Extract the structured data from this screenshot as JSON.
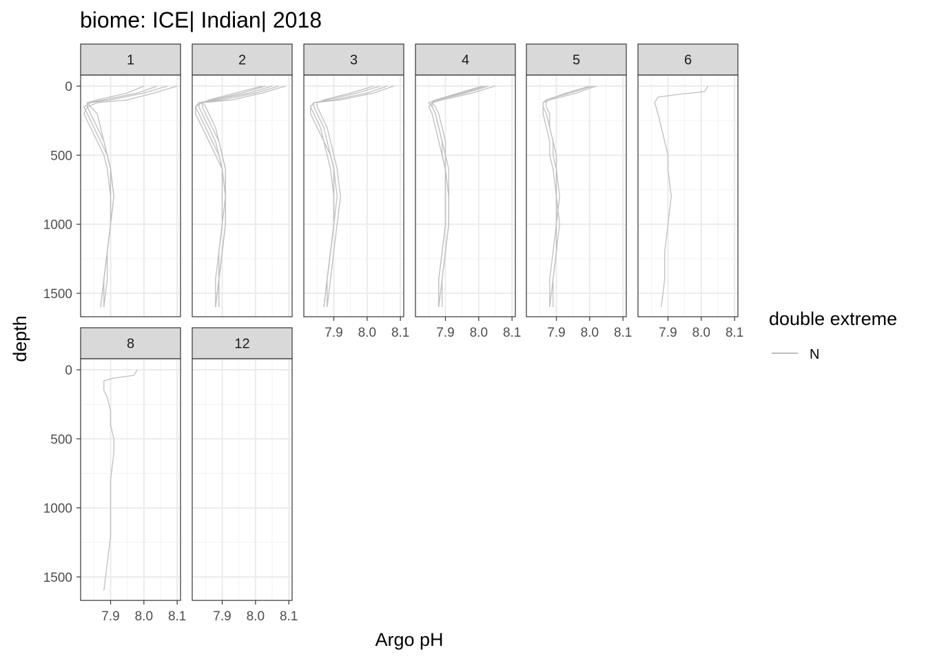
{
  "chart_data": {
    "type": "line",
    "title": "biome: ICE| Indian| 2018",
    "xlabel": "Argo pH",
    "ylabel": "depth",
    "x_range": [
      7.81,
      8.11
    ],
    "y_range": [
      1670,
      -80
    ],
    "y_reversed": true,
    "x_ticks": [
      "7.9",
      "8.0",
      "8.1"
    ],
    "y_ticks": [
      "0",
      "500",
      "1000",
      "1500"
    ],
    "grid": true,
    "line_color": "#bebebe",
    "legend": {
      "title": "double extreme",
      "entries": [
        "N"
      ],
      "placement": "right"
    },
    "panels": [
      {
        "label": "1",
        "profiles": [
          {
            "x": [
              8.1,
              8.03,
              7.95,
              7.86,
              7.83,
              7.82,
              7.84,
              7.86,
              7.88,
              7.89,
              7.9,
              7.9,
              7.89,
              7.88,
              7.87
            ],
            "depth": [
              0,
              50,
              100,
              120,
              150,
              200,
              300,
              400,
              500,
              600,
              800,
              1000,
              1200,
              1400,
              1600
            ]
          },
          {
            "x": [
              8.07,
              8.0,
              7.9,
              7.84,
              7.82,
              7.83,
              7.85,
              7.87,
              7.89,
              7.9,
              7.91,
              7.9,
              7.89,
              7.88,
              7.88
            ],
            "depth": [
              0,
              50,
              100,
              120,
              150,
              200,
              300,
              400,
              500,
              600,
              800,
              1000,
              1200,
              1400,
              1600
            ]
          },
          {
            "x": [
              8.04,
              7.98,
              7.88,
              7.83,
              7.83,
              7.84,
              7.86,
              7.88,
              7.89,
              7.9,
              7.9,
              7.9,
              7.89,
              7.88,
              7.87
            ],
            "depth": [
              0,
              50,
              100,
              120,
              150,
              200,
              300,
              400,
              500,
              600,
              800,
              1000,
              1200,
              1400,
              1600
            ]
          },
          {
            "x": [
              8.0,
              7.95,
              7.86,
              7.83,
              7.84,
              7.86,
              7.87,
              7.88,
              7.89,
              7.9,
              7.91,
              7.9,
              7.89,
              7.89,
              7.88
            ],
            "depth": [
              0,
              50,
              100,
              120,
              150,
              200,
              300,
              400,
              500,
              600,
              800,
              1000,
              1200,
              1400,
              1600
            ]
          }
        ]
      },
      {
        "label": "2",
        "profiles": [
          {
            "x": [
              8.09,
              8.02,
              7.93,
              7.84,
              7.82,
              7.82,
              7.84,
              7.86,
              7.88,
              7.9,
              7.91,
              7.91,
              7.9,
              7.89,
              7.88
            ],
            "depth": [
              0,
              50,
              100,
              120,
              150,
              200,
              300,
              400,
              500,
              600,
              800,
              1000,
              1200,
              1400,
              1600
            ]
          },
          {
            "x": [
              8.07,
              8.0,
              7.9,
              7.83,
              7.82,
              7.83,
              7.85,
              7.87,
              7.89,
              7.9,
              7.91,
              7.91,
              7.9,
              7.89,
              7.89
            ],
            "depth": [
              0,
              50,
              100,
              120,
              150,
              200,
              300,
              400,
              500,
              600,
              800,
              1000,
              1200,
              1400,
              1600
            ]
          },
          {
            "x": [
              8.05,
              7.98,
              7.88,
              7.83,
              7.83,
              7.84,
              7.86,
              7.88,
              7.89,
              7.9,
              7.9,
              7.9,
              7.89,
              7.88,
              7.88
            ],
            "depth": [
              0,
              50,
              100,
              120,
              150,
              200,
              300,
              400,
              500,
              600,
              800,
              1000,
              1200,
              1400,
              1600
            ]
          },
          {
            "x": [
              8.03,
              7.96,
              7.87,
              7.84,
              7.84,
              7.85,
              7.87,
              7.89,
              7.9,
              7.91,
              7.91,
              7.9,
              7.89,
              7.89,
              7.88
            ],
            "depth": [
              0,
              50,
              100,
              120,
              150,
              200,
              300,
              400,
              500,
              600,
              800,
              1000,
              1200,
              1400,
              1600
            ]
          },
          {
            "x": [
              8.02,
              7.94,
              7.86,
              7.84,
              7.85,
              7.86,
              7.88,
              7.89,
              7.9,
              7.91,
              7.91,
              7.91,
              7.9,
              7.89,
              7.89
            ],
            "depth": [
              0,
              50,
              100,
              120,
              150,
              200,
              300,
              400,
              500,
              600,
              800,
              1000,
              1200,
              1400,
              1600
            ]
          }
        ]
      },
      {
        "label": "3",
        "profiles": [
          {
            "x": [
              8.08,
              8.02,
              7.92,
              7.84,
              7.83,
              7.83,
              7.85,
              7.87,
              7.88,
              7.89,
              7.9,
              7.9,
              7.89,
              7.88,
              7.87
            ],
            "depth": [
              0,
              50,
              100,
              120,
              150,
              200,
              300,
              400,
              500,
              600,
              800,
              1000,
              1200,
              1400,
              1600
            ]
          },
          {
            "x": [
              8.06,
              8.0,
              7.9,
              7.84,
              7.83,
              7.84,
              7.86,
              7.87,
              7.89,
              7.9,
              7.91,
              7.9,
              7.89,
              7.88,
              7.88
            ],
            "depth": [
              0,
              50,
              100,
              120,
              150,
              200,
              300,
              400,
              500,
              600,
              800,
              1000,
              1200,
              1400,
              1600
            ]
          },
          {
            "x": [
              8.04,
              7.97,
              7.88,
              7.84,
              7.84,
              7.85,
              7.87,
              7.88,
              7.89,
              7.9,
              7.9,
              7.9,
              7.89,
              7.88,
              7.87
            ],
            "depth": [
              0,
              50,
              100,
              120,
              150,
              200,
              300,
              400,
              500,
              600,
              800,
              1000,
              1200,
              1400,
              1600
            ]
          },
          {
            "x": [
              8.02,
              7.95,
              7.87,
              7.85,
              7.85,
              7.86,
              7.88,
              7.89,
              7.9,
              7.91,
              7.92,
              7.91,
              7.9,
              7.89,
              7.88
            ],
            "depth": [
              0,
              50,
              100,
              120,
              150,
              200,
              300,
              400,
              500,
              600,
              800,
              1000,
              1200,
              1400,
              1600
            ]
          }
        ]
      },
      {
        "label": "4",
        "profiles": [
          {
            "x": [
              8.05,
              7.98,
              7.89,
              7.86,
              7.85,
              7.86,
              7.87,
              7.88,
              7.89,
              7.9,
              7.9,
              7.9,
              7.89,
              7.88,
              7.88
            ],
            "depth": [
              0,
              50,
              100,
              120,
              150,
              200,
              300,
              400,
              500,
              600,
              800,
              1000,
              1200,
              1400,
              1600
            ]
          },
          {
            "x": [
              8.03,
              7.96,
              7.88,
              7.86,
              7.86,
              7.87,
              7.88,
              7.89,
              7.9,
              7.9,
              7.91,
              7.91,
              7.9,
              7.89,
              7.88
            ],
            "depth": [
              0,
              50,
              100,
              120,
              150,
              200,
              300,
              400,
              500,
              600,
              800,
              1000,
              1200,
              1400,
              1600
            ]
          },
          {
            "x": [
              8.02,
              7.95,
              7.87,
              7.85,
              7.86,
              7.87,
              7.88,
              7.89,
              7.89,
              7.9,
              7.9,
              7.9,
              7.89,
              7.88,
              7.88
            ],
            "depth": [
              0,
              50,
              100,
              120,
              150,
              200,
              300,
              400,
              500,
              600,
              800,
              1000,
              1200,
              1400,
              1600
            ]
          },
          {
            "x": [
              8.01,
              7.94,
              7.87,
              7.86,
              7.87,
              7.88,
              7.89,
              7.9,
              7.9,
              7.91,
              7.91,
              7.91,
              7.9,
              7.89,
              7.89
            ],
            "depth": [
              0,
              50,
              100,
              120,
              150,
              200,
              300,
              400,
              500,
              600,
              800,
              1000,
              1200,
              1400,
              1600
            ]
          }
        ]
      },
      {
        "label": "5",
        "profiles": [
          {
            "x": [
              8.02,
              7.96,
              7.88,
              7.86,
              7.86,
              7.86,
              7.87,
              7.88,
              7.88,
              7.89,
              7.9,
              7.9,
              7.89,
              7.88,
              7.88
            ],
            "depth": [
              0,
              50,
              100,
              120,
              150,
              200,
              300,
              400,
              500,
              600,
              800,
              1000,
              1200,
              1400,
              1600
            ]
          },
          {
            "x": [
              8.01,
              7.94,
              7.87,
              7.86,
              7.86,
              7.87,
              7.88,
              7.89,
              7.89,
              7.9,
              7.9,
              7.91,
              7.9,
              7.89,
              7.89
            ],
            "depth": [
              0,
              50,
              100,
              120,
              150,
              200,
              300,
              400,
              500,
              600,
              800,
              1000,
              1200,
              1400,
              1600
            ]
          },
          {
            "x": [
              8.0,
              7.93,
              7.87,
              7.87,
              7.87,
              7.88,
              7.88,
              7.89,
              7.9,
              7.9,
              7.91,
              7.9,
              7.9,
              7.89,
              7.88
            ],
            "depth": [
              0,
              50,
              100,
              120,
              150,
              200,
              300,
              400,
              500,
              600,
              800,
              1000,
              1200,
              1400,
              1600
            ]
          }
        ]
      },
      {
        "label": "6",
        "profiles": [
          {
            "x": [
              8.02,
              8.01,
              7.93,
              7.87,
              7.86,
              7.87,
              7.88,
              7.89,
              7.9,
              7.9,
              7.91,
              7.9,
              7.89,
              7.89,
              7.88
            ],
            "depth": [
              0,
              40,
              60,
              80,
              120,
              200,
              300,
              400,
              500,
              600,
              800,
              1000,
              1200,
              1400,
              1600
            ]
          }
        ]
      },
      {
        "label": "8",
        "profiles": [
          {
            "x": [
              7.98,
              7.97,
              7.91,
              7.88,
              7.88,
              7.89,
              7.9,
              7.9,
              7.91,
              7.91,
              7.9,
              7.9,
              7.9,
              7.89,
              7.88
            ],
            "depth": [
              0,
              40,
              60,
              80,
              150,
              200,
              300,
              400,
              500,
              600,
              800,
              1000,
              1200,
              1400,
              1600
            ]
          }
        ]
      },
      {
        "label": "12",
        "profiles": []
      }
    ]
  }
}
